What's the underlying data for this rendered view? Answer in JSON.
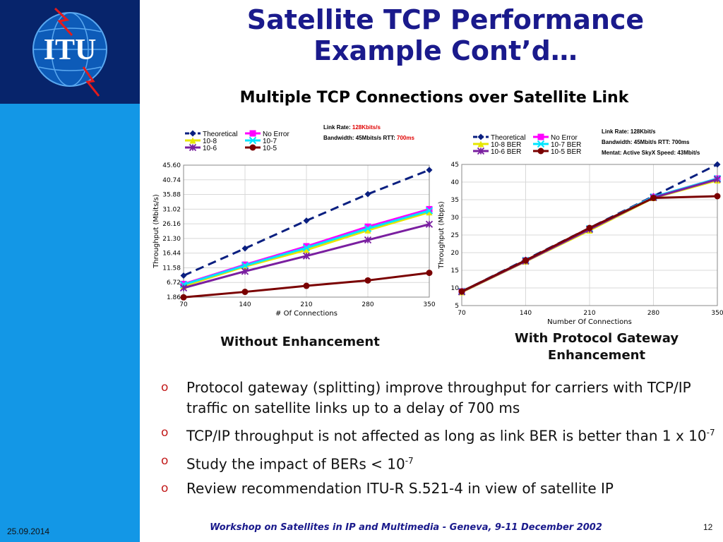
{
  "logo": {
    "text": "ITU",
    "colors": {
      "sidebar": "#1397e6",
      "logo_box": "#07246b",
      "title": "#1a1a8c",
      "bullet": "#c21a1a"
    }
  },
  "title": {
    "line1": "Satellite TCP Performance",
    "line2": "Example Cont’d…"
  },
  "subtitle": "Multiple TCP Connections over Satellite Link",
  "captions": {
    "left": "Without Enhancement",
    "right_line1": "With Protocol Gateway",
    "right_line2": "Enhancement"
  },
  "bullets": [
    {
      "text": "Protocol gateway (splitting) improve throughput for carriers with TCP/IP traffic on satellite links up to a delay of 700 ms"
    },
    {
      "text": "TCP/IP throughput is not affected as long as link BER is better than 1 x 10",
      "sup": "-7"
    },
    {
      "text": "Study the impact of BERs < 10",
      "sup": "-7"
    },
    {
      "text": "Review recommendation ITU-R S.521-4 in view of satellite IP"
    }
  ],
  "footer": {
    "text": "Workshop on Satellites in IP and Multimedia - Geneva, 9-11 December 2002",
    "date": "25.09.2014",
    "page": "12"
  },
  "chart_data": [
    {
      "type": "line",
      "caption": "Without Enhancement",
      "xlabel": "# Of Connections",
      "ylabel": "Throughput (Mbits/s)",
      "x": [
        70,
        140,
        210,
        280,
        350
      ],
      "xticks": [
        "70",
        "140",
        "210",
        "280",
        "350"
      ],
      "yticks": [
        "1.86",
        "6.72",
        "11.58",
        "16.44",
        "21.30",
        "26.16",
        "31.02",
        "35.88",
        "40.74",
        "45.60"
      ],
      "ylim": [
        1.86,
        45.6
      ],
      "grid": true,
      "legend_position": "top-left",
      "notes": [
        {
          "label": "Link Rate: ",
          "value": "128Kbits/s"
        },
        {
          "label": "Bandwidth: 45Mbits/s   RTT: ",
          "value": "700ms"
        }
      ],
      "series": [
        {
          "name": "Theoretical",
          "values": [
            9.0,
            18.0,
            27.2,
            36.0,
            44.0
          ],
          "color": "#0a1f80",
          "dash": true,
          "marker": "diamond"
        },
        {
          "name": "No Error",
          "values": [
            6.2,
            12.6,
            18.7,
            25.2,
            31.0
          ],
          "color": "#ff00ff",
          "marker": "square"
        },
        {
          "name": "10-8",
          "values": [
            5.5,
            12.0,
            17.5,
            24.0,
            30.0
          ],
          "color": "#e6e600",
          "marker": "triangle"
        },
        {
          "name": "10-7",
          "values": [
            6.0,
            12.3,
            18.2,
            24.6,
            30.5
          ],
          "color": "#00e5ff",
          "marker": "x"
        },
        {
          "name": "10-6",
          "values": [
            4.9,
            10.4,
            15.5,
            20.8,
            26.0
          ],
          "color": "#7a1fa0",
          "marker": "star"
        },
        {
          "name": "10-5",
          "values": [
            1.8,
            3.6,
            5.6,
            7.4,
            9.9
          ],
          "color": "#7a0000",
          "marker": "circle"
        }
      ]
    },
    {
      "type": "line",
      "caption": "With Protocol Gateway Enhancement",
      "xlabel": "Number Of Connections",
      "ylabel": "Throughput (Mbps)",
      "x": [
        70,
        140,
        210,
        280,
        350
      ],
      "xticks": [
        "70",
        "140",
        "210",
        "280",
        "350"
      ],
      "yticks": [
        "5",
        "10",
        "15",
        "20",
        "25",
        "30",
        "35",
        "40",
        "45"
      ],
      "ylim": [
        5,
        45
      ],
      "grid": true,
      "legend_position": "top-left",
      "notes": [
        {
          "label": "Link Rate: 128Kbit/s",
          "value": ""
        },
        {
          "label": "Bandwidth: 45Mbit/s   RTT: 700ms",
          "value": ""
        },
        {
          "label": "Mentat: Active   SkyX Speed: 43Mbit/s",
          "value": ""
        }
      ],
      "series": [
        {
          "name": "Theoretical",
          "values": [
            9.0,
            18.0,
            27.0,
            36.0,
            45.0
          ],
          "color": "#0a1f80",
          "dash": true,
          "marker": "diamond"
        },
        {
          "name": "No Error",
          "values": [
            9.0,
            17.8,
            26.8,
            35.8,
            41.0
          ],
          "color": "#ff00ff",
          "marker": "square"
        },
        {
          "name": "10-8 BER",
          "values": [
            8.8,
            17.5,
            26.3,
            35.5,
            40.5
          ],
          "color": "#e6e600",
          "marker": "triangle"
        },
        {
          "name": "10-7 BER",
          "values": [
            9.0,
            17.8,
            26.8,
            35.8,
            41.0
          ],
          "color": "#00e5ff",
          "marker": "x"
        },
        {
          "name": "10-6 BER",
          "values": [
            8.9,
            17.6,
            26.6,
            35.6,
            40.8
          ],
          "color": "#7a1fa0",
          "marker": "star"
        },
        {
          "name": "10-5 BER",
          "values": [
            9.0,
            17.8,
            27.0,
            35.5,
            36.0
          ],
          "color": "#7a0000",
          "marker": "circle"
        }
      ]
    }
  ]
}
